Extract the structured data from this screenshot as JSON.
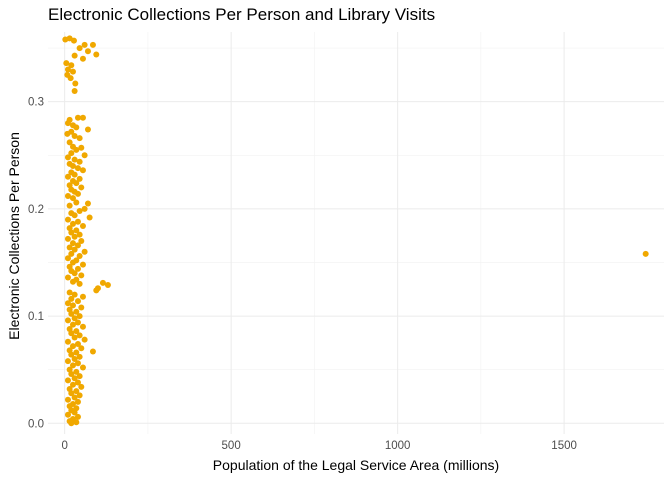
{
  "chart_data": {
    "type": "scatter",
    "title": "Electronic Collections Per Person and Library Visits",
    "xlabel": "Population of the Legal Service Area (millions)",
    "ylabel": "Electronic Collections Per Person",
    "xlim": [
      -50,
      1800
    ],
    "ylim": [
      -0.01,
      0.365
    ],
    "x_ticks": [
      0,
      500,
      1000,
      1500
    ],
    "x_tick_labels": [
      "0",
      "500",
      "1000",
      "1500"
    ],
    "y_ticks": [
      0.0,
      0.1,
      0.2,
      0.3
    ],
    "y_tick_labels": [
      "0.0",
      "0.1",
      "0.2",
      "0.3"
    ],
    "grid": true,
    "point_color": "#f0a800",
    "series": [
      {
        "points": [
          [
            2,
            0.358
          ],
          [
            15,
            0.359
          ],
          [
            28,
            0.357
          ],
          [
            60,
            0.353
          ],
          [
            85,
            0.353
          ],
          [
            45,
            0.35
          ],
          [
            70,
            0.347
          ],
          [
            95,
            0.344
          ],
          [
            30,
            0.343
          ],
          [
            55,
            0.34
          ],
          [
            5,
            0.336
          ],
          [
            20,
            0.334
          ],
          [
            10,
            0.33
          ],
          [
            25,
            0.328
          ],
          [
            8,
            0.325
          ],
          [
            18,
            0.322
          ],
          [
            32,
            0.317
          ],
          [
            30,
            0.31
          ],
          [
            40,
            0.285
          ],
          [
            55,
            0.285
          ],
          [
            15,
            0.283
          ],
          [
            10,
            0.28
          ],
          [
            25,
            0.278
          ],
          [
            35,
            0.276
          ],
          [
            70,
            0.274
          ],
          [
            20,
            0.272
          ],
          [
            8,
            0.27
          ],
          [
            30,
            0.268
          ],
          [
            45,
            0.266
          ],
          [
            15,
            0.262
          ],
          [
            25,
            0.258
          ],
          [
            50,
            0.257
          ],
          [
            35,
            0.255
          ],
          [
            20,
            0.252
          ],
          [
            60,
            0.25
          ],
          [
            10,
            0.248
          ],
          [
            30,
            0.246
          ],
          [
            45,
            0.244
          ],
          [
            15,
            0.242
          ],
          [
            25,
            0.24
          ],
          [
            40,
            0.238
          ],
          [
            55,
            0.236
          ],
          [
            20,
            0.234
          ],
          [
            30,
            0.232
          ],
          [
            10,
            0.23
          ],
          [
            45,
            0.228
          ],
          [
            25,
            0.226
          ],
          [
            35,
            0.224
          ],
          [
            15,
            0.222
          ],
          [
            50,
            0.22
          ],
          [
            20,
            0.218
          ],
          [
            30,
            0.216
          ],
          [
            40,
            0.214
          ],
          [
            10,
            0.212
          ],
          [
            25,
            0.21
          ],
          [
            70,
            0.205
          ],
          [
            60,
            0.2
          ],
          [
            35,
            0.206
          ],
          [
            15,
            0.203
          ],
          [
            45,
            0.198
          ],
          [
            20,
            0.196
          ],
          [
            30,
            0.194
          ],
          [
            75,
            0.192
          ],
          [
            10,
            0.19
          ],
          [
            40,
            0.188
          ],
          [
            25,
            0.186
          ],
          [
            55,
            0.184
          ],
          [
            15,
            0.182
          ],
          [
            35,
            0.18
          ],
          [
            20,
            0.178
          ],
          [
            45,
            0.176
          ],
          [
            30,
            0.174
          ],
          [
            10,
            0.172
          ],
          [
            50,
            0.17
          ],
          [
            25,
            0.168
          ],
          [
            40,
            0.166
          ],
          [
            15,
            0.164
          ],
          [
            30,
            0.162
          ],
          [
            60,
            0.16
          ],
          [
            20,
            0.158
          ],
          [
            45,
            0.156
          ],
          [
            10,
            0.154
          ],
          [
            35,
            0.152
          ],
          [
            25,
            0.15
          ],
          [
            55,
            0.148
          ],
          [
            15,
            0.146
          ],
          [
            40,
            0.144
          ],
          [
            20,
            0.142
          ],
          [
            30,
            0.14
          ],
          [
            50,
            0.138
          ],
          [
            10,
            0.136
          ],
          [
            35,
            0.134
          ],
          [
            25,
            0.132
          ],
          [
            45,
            0.13
          ],
          [
            130,
            0.129
          ],
          [
            115,
            0.131
          ],
          [
            100,
            0.126
          ],
          [
            95,
            0.124
          ],
          [
            15,
            0.122
          ],
          [
            30,
            0.12
          ],
          [
            55,
            0.118
          ],
          [
            20,
            0.116
          ],
          [
            40,
            0.114
          ],
          [
            10,
            0.112
          ],
          [
            25,
            0.11
          ],
          [
            50,
            0.108
          ],
          [
            15,
            0.106
          ],
          [
            35,
            0.104
          ],
          [
            20,
            0.102
          ],
          [
            45,
            0.1
          ],
          [
            30,
            0.098
          ],
          [
            10,
            0.096
          ],
          [
            40,
            0.094
          ],
          [
            25,
            0.092
          ],
          [
            55,
            0.09
          ],
          [
            15,
            0.088
          ],
          [
            35,
            0.086
          ],
          [
            20,
            0.084
          ],
          [
            45,
            0.082
          ],
          [
            30,
            0.08
          ],
          [
            60,
            0.078
          ],
          [
            10,
            0.076
          ],
          [
            40,
            0.074
          ],
          [
            25,
            0.072
          ],
          [
            50,
            0.07
          ],
          [
            85,
            0.067
          ],
          [
            15,
            0.068
          ],
          [
            35,
            0.066
          ],
          [
            20,
            0.064
          ],
          [
            45,
            0.062
          ],
          [
            30,
            0.06
          ],
          [
            10,
            0.058
          ],
          [
            40,
            0.056
          ],
          [
            25,
            0.054
          ],
          [
            55,
            0.052
          ],
          [
            15,
            0.05
          ],
          [
            35,
            0.048
          ],
          [
            20,
            0.046
          ],
          [
            45,
            0.044
          ],
          [
            30,
            0.042
          ],
          [
            10,
            0.04
          ],
          [
            40,
            0.038
          ],
          [
            25,
            0.036
          ],
          [
            50,
            0.034
          ],
          [
            15,
            0.032
          ],
          [
            35,
            0.03
          ],
          [
            20,
            0.028
          ],
          [
            45,
            0.026
          ],
          [
            30,
            0.024
          ],
          [
            10,
            0.022
          ],
          [
            40,
            0.02
          ],
          [
            25,
            0.018
          ],
          [
            15,
            0.016
          ],
          [
            35,
            0.014
          ],
          [
            20,
            0.012
          ],
          [
            30,
            0.01
          ],
          [
            10,
            0.008
          ],
          [
            40,
            0.006
          ],
          [
            25,
            0.004
          ],
          [
            15,
            0.002
          ],
          [
            35,
            0.001
          ],
          [
            20,
            0.0
          ],
          [
            1745,
            0.158
          ]
        ]
      }
    ]
  }
}
